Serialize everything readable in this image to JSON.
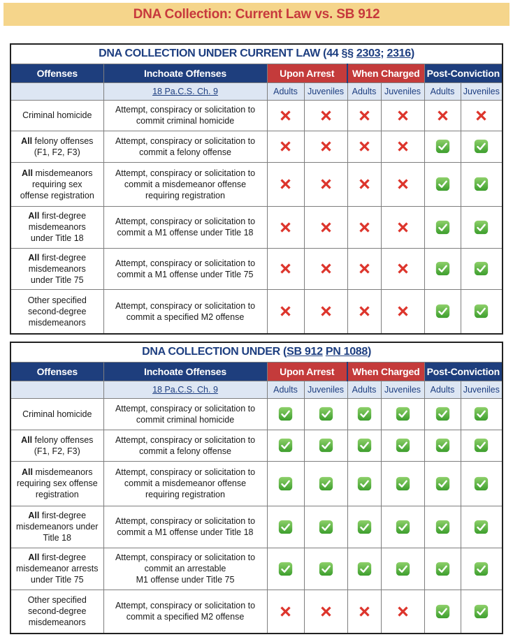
{
  "banner": {
    "title": "DNA Collection: Current Law vs. SB 912"
  },
  "colors": {
    "banner_bg": "#f5d58b",
    "banner_text": "#c7393d",
    "header_navy": "#1e3e7d",
    "header_red": "#c43b3b",
    "subheader_bg": "#dde6f3",
    "link_navy": "#1d3e80",
    "cross_red": "#dd352c",
    "check_green": "#44a52f"
  },
  "icons": {
    "x": "cross-icon",
    "check": "check-icon"
  },
  "header": {
    "offenses": "Offenses",
    "inchoate": "Inchoate Offenses",
    "upon_arrest": "Upon Arrest",
    "when_charged": "When Charged",
    "post_conviction": "Post-Conviction",
    "statute_link": "18 Pa.C.S. Ch. 9",
    "adults": "Adults",
    "juveniles": "Juveniles"
  },
  "tables": [
    {
      "title_prefix": "DNA COLLECTION UNDER CURRENT LAW (44 §§ ",
      "title_link1": "2303",
      "title_sep": "; ",
      "title_link2": "2316",
      "title_suffix": ")",
      "rows": [
        {
          "offense_bold": "",
          "offense": "Criminal homicide",
          "inchoate": "Attempt, conspiracy or solicitation to\ncommit criminal homicide",
          "marks": [
            "x",
            "x",
            "x",
            "x",
            "x",
            "x"
          ]
        },
        {
          "offense_bold": "All",
          "offense": " felony offenses\n(F1, F2, F3)",
          "inchoate": "Attempt, conspiracy or solicitation to\ncommit a felony offense",
          "marks": [
            "x",
            "x",
            "x",
            "x",
            "check",
            "check"
          ]
        },
        {
          "offense_bold": "All",
          "offense": " misdemeanors\nrequiring sex\noffense registration",
          "inchoate": "Attempt, conspiracy or solicitation to\ncommit a misdemeanor offense\nrequiring registration",
          "marks": [
            "x",
            "x",
            "x",
            "x",
            "check",
            "check"
          ]
        },
        {
          "offense_bold": "All",
          "offense": " first-degree\nmisdemeanors\nunder Title 18",
          "inchoate": "Attempt, conspiracy or solicitation to\ncommit a M1 offense under Title 18",
          "marks": [
            "x",
            "x",
            "x",
            "x",
            "check",
            "check"
          ]
        },
        {
          "offense_bold": "All",
          "offense": " first-degree\nmisdemeanors\nunder Title 75",
          "inchoate": "Attempt, conspiracy or solicitation to\ncommit a M1 offense under Title 75",
          "marks": [
            "x",
            "x",
            "x",
            "x",
            "check",
            "check"
          ]
        },
        {
          "offense_bold": "",
          "offense": "Other specified\nsecond-degree\nmisdemeanors",
          "inchoate": "Attempt, conspiracy or solicitation to\ncommit a specified M2 offense",
          "marks": [
            "x",
            "x",
            "x",
            "x",
            "check",
            "check"
          ]
        }
      ]
    },
    {
      "title_prefix": "DNA COLLECTION UNDER (",
      "title_link1": "SB 912",
      "title_sep": " ",
      "title_link2": "PN 1088",
      "title_suffix": ")",
      "rows": [
        {
          "offense_bold": "",
          "offense": "Criminal homicide",
          "inchoate": "Attempt, conspiracy or solicitation to\ncommit criminal homicide",
          "marks": [
            "check",
            "check",
            "check",
            "check",
            "check",
            "check"
          ]
        },
        {
          "offense_bold": "All",
          "offense": " felony offenses\n(F1, F2, F3)",
          "inchoate": "Attempt, conspiracy or solicitation to\ncommit a felony offense",
          "marks": [
            "check",
            "check",
            "check",
            "check",
            "check",
            "check"
          ]
        },
        {
          "offense_bold": "All",
          "offense": " misdemeanors\nrequiring sex offense\nregistration",
          "inchoate": "Attempt, conspiracy or solicitation to\ncommit a misdemeanor offense\nrequiring registration",
          "marks": [
            "check",
            "check",
            "check",
            "check",
            "check",
            "check"
          ]
        },
        {
          "offense_bold": "All",
          "offense": " first-degree\nmisdemeanors under\nTitle 18",
          "inchoate": "Attempt, conspiracy or solicitation to\ncommit a M1 offense under Title 18",
          "marks": [
            "check",
            "check",
            "check",
            "check",
            "check",
            "check"
          ]
        },
        {
          "offense_bold": "All",
          "offense": " first-degree\nmisdemeanor arrests\nunder Title 75",
          "inchoate": "Attempt, conspiracy or solicitation to\ncommit an arrestable\nM1 offense under Title 75",
          "marks": [
            "check",
            "check",
            "check",
            "check",
            "check",
            "check"
          ]
        },
        {
          "offense_bold": "",
          "offense": "Other specified\nsecond-degree\nmisdemeanors",
          "inchoate": "Attempt, conspiracy or solicitation to\ncommit a specified M2 offense",
          "marks": [
            "x",
            "x",
            "x",
            "x",
            "check",
            "check"
          ]
        }
      ]
    }
  ]
}
